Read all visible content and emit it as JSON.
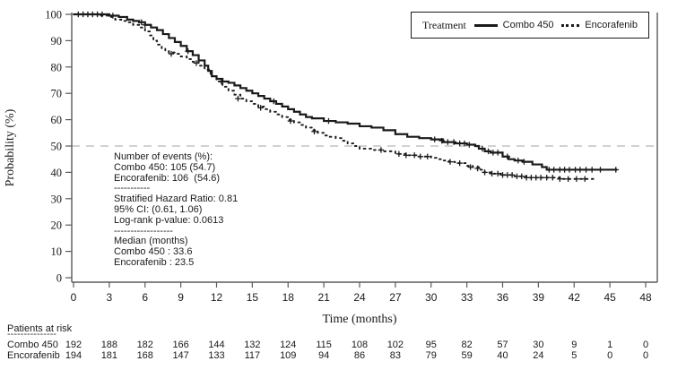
{
  "chart": {
    "y_axis": {
      "label": "Probability (%)"
    },
    "x_axis": {
      "label": "Time (months)"
    },
    "legend": {
      "title": "Treatment",
      "items": [
        {
          "label": "Combo 450",
          "line_style": "solid"
        },
        {
          "label": "Encorafenib",
          "line_style": "dotted"
        }
      ]
    },
    "annotation": {
      "lines": [
        "Number of events (%):",
        "Combo 450: 105 (54.7)",
        "Encorafenib: 106  (54.6)",
        "-----------",
        "Stratified Hazard Ratio: 0.81",
        "95% CI: (0.61, 1.06)",
        "Log-rank p-value: 0.0613",
        "------------------",
        "Median (months)",
        "Combo 450 : 33.6",
        "Encorafenib : 23.5"
      ]
    },
    "colors": {
      "curves": "#1a1a1a",
      "reference_line": "#c2c2c2",
      "background": "#ffffff"
    }
  },
  "chart_data": {
    "type": "line",
    "subtype": "kaplan-meier-step",
    "title": "",
    "xlabel": "Time (months)",
    "ylabel": "Probability (%)",
    "xlim": [
      0,
      48
    ],
    "ylim": [
      0,
      100
    ],
    "x_ticks": [
      0,
      3,
      6,
      9,
      12,
      15,
      18,
      21,
      24,
      27,
      30,
      33,
      36,
      39,
      42,
      45,
      48
    ],
    "y_ticks": [
      0,
      10,
      20,
      30,
      40,
      50,
      60,
      70,
      80,
      90,
      100
    ],
    "reference_line_y": 50,
    "grid": false,
    "legend_position": "top-right",
    "series": [
      {
        "name": "Combo 450",
        "style": "solid",
        "points": [
          [
            0,
            100
          ],
          [
            2.5,
            100
          ],
          [
            3,
            99.5
          ],
          [
            3.8,
            99
          ],
          [
            4.5,
            98
          ],
          [
            5,
            97.5
          ],
          [
            5.5,
            97
          ],
          [
            6,
            96
          ],
          [
            6.5,
            95
          ],
          [
            7,
            94
          ],
          [
            7.5,
            92.5
          ],
          [
            8,
            91
          ],
          [
            8.5,
            89.5
          ],
          [
            9,
            88
          ],
          [
            9.5,
            86
          ],
          [
            10,
            84.5
          ],
          [
            10.5,
            82.5
          ],
          [
            11,
            80.5
          ],
          [
            11.3,
            78.5
          ],
          [
            11.6,
            76.5
          ],
          [
            12,
            75.5
          ],
          [
            12.5,
            74.5
          ],
          [
            13,
            74
          ],
          [
            13.5,
            73
          ],
          [
            14,
            72
          ],
          [
            14.5,
            71
          ],
          [
            15,
            70
          ],
          [
            15.5,
            69
          ],
          [
            16,
            68
          ],
          [
            16.5,
            67
          ],
          [
            17,
            66
          ],
          [
            17.5,
            65
          ],
          [
            18,
            64
          ],
          [
            18.5,
            63
          ],
          [
            19,
            62
          ],
          [
            19.5,
            61
          ],
          [
            20,
            60.5
          ],
          [
            21,
            59.5
          ],
          [
            22,
            59
          ],
          [
            23,
            58.5
          ],
          [
            24,
            57.5
          ],
          [
            25,
            57
          ],
          [
            26,
            56
          ],
          [
            27,
            54.5
          ],
          [
            28,
            53.5
          ],
          [
            29,
            53
          ],
          [
            30,
            52.5
          ],
          [
            31,
            51.5
          ],
          [
            32,
            51
          ],
          [
            33,
            50.5
          ],
          [
            33.7,
            50
          ],
          [
            34,
            49
          ],
          [
            34.5,
            48
          ],
          [
            35,
            47.5
          ],
          [
            36,
            46
          ],
          [
            36.5,
            45
          ],
          [
            37,
            44.5
          ],
          [
            37.7,
            44
          ],
          [
            38.5,
            43
          ],
          [
            39.3,
            42
          ],
          [
            39.7,
            41
          ],
          [
            45.6,
            41
          ]
        ],
        "censor_marks": [
          [
            0.4,
            100
          ],
          [
            0.8,
            100
          ],
          [
            1.2,
            100
          ],
          [
            1.6,
            100
          ],
          [
            2.0,
            100
          ],
          [
            2.4,
            100
          ],
          [
            3.3,
            99.5
          ],
          [
            5.7,
            97
          ],
          [
            6.0,
            96
          ],
          [
            9.6,
            86
          ],
          [
            12.4,
            74.5
          ],
          [
            16.8,
            67
          ],
          [
            21.4,
            59.5
          ],
          [
            30.3,
            52.5
          ],
          [
            30.9,
            52
          ],
          [
            31.4,
            51.5
          ],
          [
            31.9,
            51.5
          ],
          [
            32.4,
            51
          ],
          [
            32.8,
            51
          ],
          [
            33.2,
            50.5
          ],
          [
            34.3,
            49
          ],
          [
            34.8,
            48
          ],
          [
            35.2,
            47.5
          ],
          [
            35.6,
            47.5
          ],
          [
            36.4,
            46
          ],
          [
            37.3,
            44.5
          ],
          [
            37.8,
            44
          ],
          [
            39.9,
            41
          ],
          [
            40.3,
            41
          ],
          [
            40.8,
            41
          ],
          [
            41.2,
            41
          ],
          [
            41.6,
            41
          ],
          [
            42.1,
            41
          ],
          [
            42.5,
            41
          ],
          [
            43.0,
            41
          ],
          [
            43.5,
            41
          ],
          [
            44.2,
            41
          ],
          [
            45.5,
            41
          ]
        ]
      },
      {
        "name": "Encorafenib",
        "style": "dotted",
        "points": [
          [
            0,
            100
          ],
          [
            1.5,
            100
          ],
          [
            2,
            99.5
          ],
          [
            3,
            99
          ],
          [
            3.5,
            98
          ],
          [
            4,
            97.5
          ],
          [
            4.5,
            97
          ],
          [
            5,
            96
          ],
          [
            5.5,
            95
          ],
          [
            6,
            93.5
          ],
          [
            6.4,
            92
          ],
          [
            6.7,
            90
          ],
          [
            7,
            88.5
          ],
          [
            7.4,
            87
          ],
          [
            7.7,
            86
          ],
          [
            8,
            85.5
          ],
          [
            8.5,
            85
          ],
          [
            9,
            84
          ],
          [
            9.5,
            83
          ],
          [
            10,
            82
          ],
          [
            10.5,
            80.5
          ],
          [
            11,
            79
          ],
          [
            11.5,
            76.5
          ],
          [
            12,
            74.5
          ],
          [
            12.5,
            72.5
          ],
          [
            13,
            71
          ],
          [
            13.5,
            69.5
          ],
          [
            14,
            68
          ],
          [
            14.5,
            67
          ],
          [
            15,
            66
          ],
          [
            15.5,
            65
          ],
          [
            16,
            64
          ],
          [
            16.5,
            63
          ],
          [
            17,
            62
          ],
          [
            17.5,
            61
          ],
          [
            18,
            60
          ],
          [
            18.5,
            59
          ],
          [
            19,
            58
          ],
          [
            19.5,
            57
          ],
          [
            20,
            56
          ],
          [
            20.5,
            55
          ],
          [
            21,
            54
          ],
          [
            21.5,
            53.5
          ],
          [
            22,
            53
          ],
          [
            22.5,
            52
          ],
          [
            23,
            51
          ],
          [
            23.5,
            50
          ],
          [
            24,
            49
          ],
          [
            25,
            48.5
          ],
          [
            26,
            48
          ],
          [
            27,
            47
          ],
          [
            28,
            46.5
          ],
          [
            29,
            46
          ],
          [
            30,
            45.5
          ],
          [
            30.5,
            45
          ],
          [
            31,
            44.5
          ],
          [
            31.5,
            44
          ],
          [
            32,
            43.5
          ],
          [
            33,
            42.5
          ],
          [
            33.5,
            42
          ],
          [
            34,
            41
          ],
          [
            34.5,
            40
          ],
          [
            35,
            39.5
          ],
          [
            36,
            39
          ],
          [
            37,
            38.5
          ],
          [
            38,
            38
          ],
          [
            40,
            38
          ],
          [
            41,
            37.5
          ],
          [
            43.9,
            37.5
          ]
        ],
        "censor_marks": [
          [
            8.2,
            85
          ],
          [
            10.3,
            81.5
          ],
          [
            13.8,
            68
          ],
          [
            15.7,
            64.5
          ],
          [
            18.2,
            59.5
          ],
          [
            20.2,
            55.5
          ],
          [
            25.8,
            48.5
          ],
          [
            27.3,
            47
          ],
          [
            27.9,
            46.5
          ],
          [
            28.6,
            46.5
          ],
          [
            29.1,
            46
          ],
          [
            29.7,
            46
          ],
          [
            31.6,
            44
          ],
          [
            32.4,
            43.5
          ],
          [
            33.3,
            42
          ],
          [
            33.9,
            41.5
          ],
          [
            34.5,
            40
          ],
          [
            35.1,
            39.5
          ],
          [
            35.6,
            39.5
          ],
          [
            36.0,
            39
          ],
          [
            36.4,
            39
          ],
          [
            36.8,
            39
          ],
          [
            37.2,
            38.5
          ],
          [
            37.6,
            38.5
          ],
          [
            38.0,
            38
          ],
          [
            38.4,
            38
          ],
          [
            38.8,
            38
          ],
          [
            39.2,
            38
          ],
          [
            39.7,
            38
          ],
          [
            40.2,
            38
          ],
          [
            40.8,
            37.5
          ],
          [
            41.5,
            37.5
          ],
          [
            42.2,
            37.5
          ],
          [
            42.9,
            37.5
          ]
        ]
      }
    ]
  },
  "risk_table": {
    "title": "Patients at risk",
    "separator": "---------------",
    "time_points": [
      0,
      3,
      6,
      9,
      12,
      15,
      18,
      21,
      24,
      27,
      30,
      33,
      36,
      39,
      42,
      45,
      48
    ],
    "rows": [
      {
        "label": "Combo 450",
        "values": [
          192,
          188,
          182,
          166,
          144,
          132,
          124,
          115,
          108,
          102,
          95,
          82,
          57,
          30,
          9,
          1,
          0
        ]
      },
      {
        "label": "Encorafenib",
        "values": [
          194,
          181,
          168,
          147,
          133,
          117,
          109,
          94,
          86,
          83,
          79,
          59,
          40,
          24,
          5,
          0,
          0
        ]
      }
    ]
  }
}
